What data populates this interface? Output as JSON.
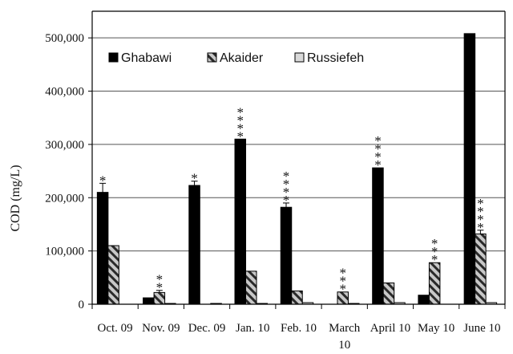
{
  "chart_data": {
    "type": "bar",
    "title": "",
    "xlabel": "",
    "ylabel": "COD (mg/L)",
    "ylim": [
      0,
      550000
    ],
    "yticks": [
      0,
      100000,
      200000,
      300000,
      400000,
      500000
    ],
    "ytick_labels": [
      "0",
      "100,000",
      "200,000",
      "300,000",
      "400,000",
      "500,000"
    ],
    "categories": [
      [
        "Oct. 09"
      ],
      [
        "Nov. 09"
      ],
      [
        "Dec. 09"
      ],
      [
        "Jan. 10"
      ],
      [
        "Feb. 10"
      ],
      [
        "March",
        "10"
      ],
      [
        "April 10"
      ],
      [
        "May 10"
      ],
      [
        "June 10"
      ]
    ],
    "series": [
      {
        "name": "Ghabawi",
        "values": [
          210000,
          12000,
          223000,
          310000,
          182000,
          0,
          256000,
          17000,
          508000
        ],
        "errors": [
          17000,
          0,
          8000,
          0,
          8000,
          0,
          0,
          0,
          0
        ],
        "fill": "#000000"
      },
      {
        "name": "Akaider",
        "values": [
          110000,
          22000,
          0,
          62000,
          25000,
          23000,
          40000,
          78000,
          132000
        ],
        "errors": [
          0,
          4000,
          0,
          0,
          0,
          0,
          0,
          0,
          7000
        ],
        "fill": "hatch"
      },
      {
        "name": "Russiefeh",
        "values": [
          0,
          1500,
          1500,
          1500,
          3000,
          1500,
          3000,
          0,
          3000
        ],
        "errors": [
          0,
          0,
          0,
          0,
          0,
          0,
          0,
          0,
          0
        ],
        "fill": "#d9d9d9"
      }
    ],
    "annotations": [
      {
        "category_index": 0,
        "series_index": 0,
        "text": "*"
      },
      {
        "category_index": 1,
        "series_index": 1,
        "text": "**"
      },
      {
        "category_index": 2,
        "series_index": 0,
        "text": "*"
      },
      {
        "category_index": 3,
        "series_index": 0,
        "text": "****"
      },
      {
        "category_index": 4,
        "series_index": 0,
        "text": "****"
      },
      {
        "category_index": 5,
        "series_index": 1,
        "text": "***"
      },
      {
        "category_index": 6,
        "series_index": 0,
        "text": "****"
      },
      {
        "category_index": 7,
        "series_index": 1,
        "text": "***"
      },
      {
        "category_index": 8,
        "series_index": 1,
        "text": "****"
      }
    ],
    "grid": true,
    "legend_position": "top-left"
  }
}
